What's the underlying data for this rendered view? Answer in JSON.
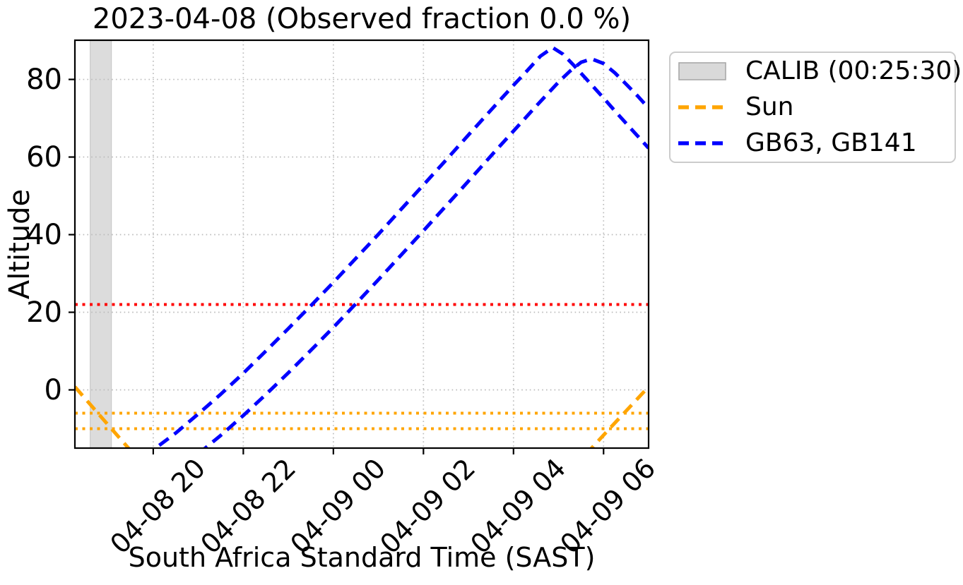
{
  "title": "2023-04-08 (Observed fraction 0.0 %)",
  "axes": {
    "xlabel": "South Africa Standard Time (SAST)",
    "ylabel": "Altitude"
  },
  "legend": {
    "items": [
      {
        "key": "patch",
        "label": "CALIB (00:25:30)",
        "color": "#d9d9d9",
        "edge_color": "#a8a8a8"
      },
      {
        "key": "dashed",
        "label": "Sun",
        "color": "#ffa500"
      },
      {
        "key": "dashed",
        "label": "GB63, GB141",
        "color": "#0000ff"
      }
    ]
  },
  "colors": {
    "sun": "#ffa500",
    "sources": "#0000ff",
    "elevation_limit": "#ff0000",
    "calib_band": "#dcdcdc",
    "calib_band_edge": "#c9c9c9",
    "grid": "#bbbbbb",
    "spine": "#000000",
    "legend_border": "#cccccc"
  },
  "chart_data": {
    "type": "line",
    "title": "2023-04-08 (Observed fraction 0.0 %)",
    "xlabel": "South Africa Standard Time (SAST)",
    "ylabel": "Altitude",
    "x_unit": "decimal hours SAST (24+ = next day 04-09)",
    "xlim": [
      18.26,
      31.0
    ],
    "ylim": [
      -15.0,
      90.1
    ],
    "grid": "dotted",
    "legend_position": "outside upper right",
    "x_ticks": [
      20,
      22,
      24,
      26,
      28,
      30
    ],
    "x_tick_labels": [
      "04-08 20",
      "04-08 22",
      "04-09 00",
      "04-09 02",
      "04-09 04",
      "04-09 06"
    ],
    "y_ticks": [
      0,
      20,
      40,
      60,
      80
    ],
    "y_tick_labels": [
      "0",
      "20",
      "40",
      "60",
      "80"
    ],
    "calib_window": {
      "name": "CALIB",
      "duration": "00:25:30",
      "t_start": 18.6,
      "t_end": 19.07,
      "fill": "#dcdcdc"
    },
    "hlines": [
      {
        "name": "elevation-limit",
        "y": 22,
        "color": "#ff0000",
        "linestyle": "dotted"
      },
      {
        "name": "sun-limit-upper",
        "y": -6,
        "color": "#ffa500",
        "linestyle": "dotted"
      },
      {
        "name": "sun-limit-lower",
        "y": -10,
        "color": "#ffa500",
        "linestyle": "dotted"
      }
    ],
    "series": [
      {
        "name": "Sun",
        "color": "#ffa500",
        "linestyle": "dashed",
        "segments": [
          [
            [
              18.26,
              0.8
            ],
            [
              18.8,
              -6.4
            ],
            [
              19.45,
              -15.0
            ],
            [
              19.75,
              -19.0
            ]
          ],
          [
            [
              29.6,
              -16.7
            ],
            [
              30.1,
              -10.4
            ],
            [
              30.6,
              -4.2
            ],
            [
              31.0,
              0.8
            ]
          ]
        ]
      },
      {
        "name": "GB63, GB141",
        "color": "#0000ff",
        "linestyle": "dashed",
        "segments": [
          [
            [
              19.8,
              -17.2
            ],
            [
              20.5,
              -11.1
            ],
            [
              21.0,
              -6.2
            ],
            [
              21.5,
              -1.1
            ],
            [
              22.0,
              4.3
            ],
            [
              22.5,
              10.0
            ],
            [
              23.0,
              15.8
            ],
            [
              23.5,
              21.7
            ],
            [
              24.0,
              27.7
            ],
            [
              24.5,
              33.9
            ],
            [
              25.0,
              40.1
            ],
            [
              25.5,
              46.5
            ],
            [
              26.0,
              52.8
            ],
            [
              26.5,
              59.2
            ],
            [
              27.0,
              65.7
            ],
            [
              27.5,
              72.1
            ],
            [
              28.0,
              78.5
            ],
            [
              28.3,
              82.2
            ],
            [
              28.6,
              86.0
            ],
            [
              28.87,
              88.2
            ],
            [
              29.1,
              86.5
            ],
            [
              29.35,
              83.5
            ],
            [
              29.75,
              78.4
            ],
            [
              30.0,
              75.2
            ],
            [
              30.25,
              71.9
            ],
            [
              30.5,
              68.7
            ],
            [
              30.75,
              65.5
            ],
            [
              31.0,
              62.3
            ]
          ],
          [
            [
              21.0,
              -16.5
            ],
            [
              21.5,
              -11.7
            ],
            [
              22.0,
              -6.6
            ],
            [
              22.5,
              -1.2
            ],
            [
              23.0,
              4.4
            ],
            [
              23.5,
              10.2
            ],
            [
              24.0,
              16.1
            ],
            [
              24.5,
              22.2
            ],
            [
              25.0,
              28.4
            ],
            [
              25.5,
              34.7
            ],
            [
              26.0,
              41.0
            ],
            [
              26.5,
              47.4
            ],
            [
              27.0,
              53.8
            ],
            [
              27.5,
              60.3
            ],
            [
              28.0,
              66.7
            ],
            [
              28.5,
              73.1
            ],
            [
              29.0,
              79.3
            ],
            [
              29.25,
              82.1
            ],
            [
              29.5,
              84.4
            ],
            [
              29.73,
              85.3
            ],
            [
              30.0,
              84.1
            ],
            [
              30.25,
              81.7
            ],
            [
              30.5,
              78.8
            ],
            [
              30.75,
              75.8
            ],
            [
              31.0,
              72.6
            ]
          ]
        ]
      }
    ]
  }
}
